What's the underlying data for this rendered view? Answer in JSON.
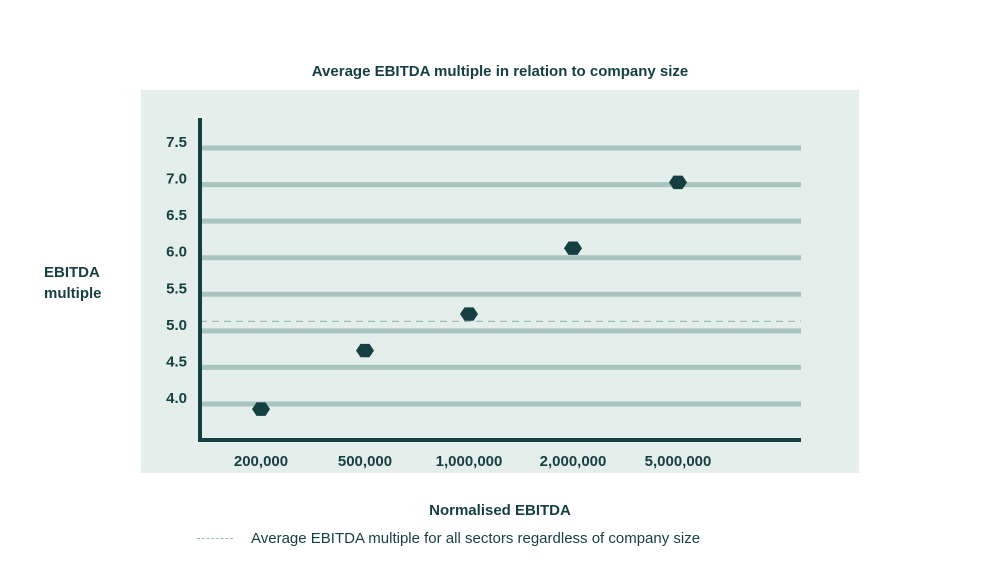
{
  "chart_data": {
    "type": "scatter",
    "title": "Average EBITDA multiple in relation to company size",
    "xlabel": "Normalised EBITDA",
    "ylabel_lines": [
      "EBITDA",
      "multiple"
    ],
    "categories": [
      "200,000",
      "500,000",
      "1,000,000",
      "2,000,000",
      "5,000,000"
    ],
    "values": [
      3.93,
      4.73,
      5.23,
      6.13,
      7.03
    ],
    "yticks": [
      "4.0",
      "4.5",
      "5.0",
      "5.5",
      "6.0",
      "6.5",
      "7.0",
      "7.5"
    ],
    "ylim": [
      4.0,
      7.5
    ],
    "reference_line": {
      "value": 5.13,
      "label": "Average EBITDA multiple for all sectors regardless of company size"
    },
    "grid": true,
    "colors": {
      "marker": "#163f42",
      "grid": "#a9c4bf",
      "axis": "#163f42",
      "background": "#e4eeea",
      "reference": "#9bbcb6"
    }
  }
}
